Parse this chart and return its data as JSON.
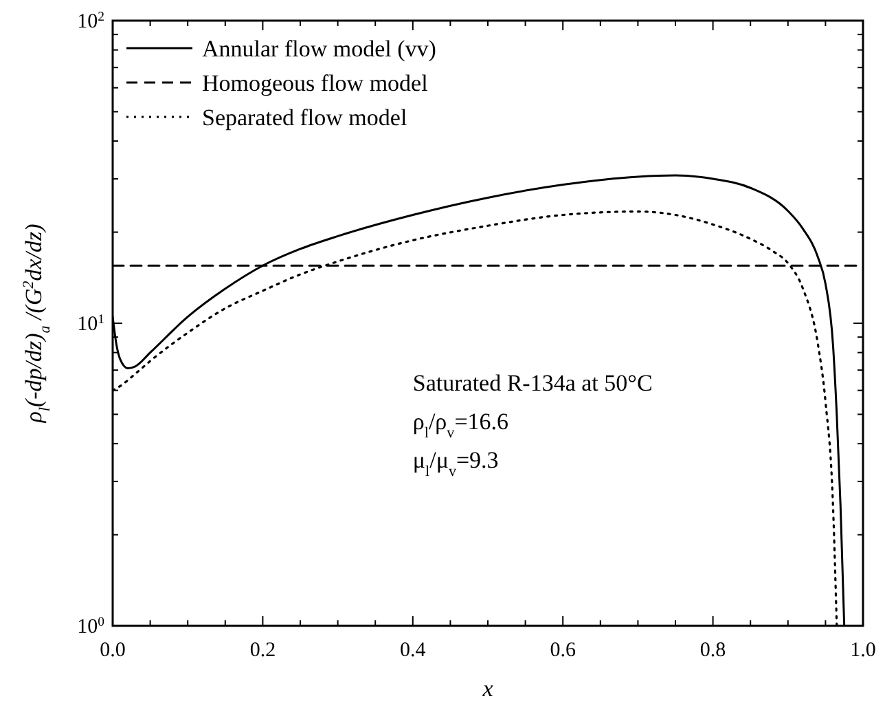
{
  "chart_data": {
    "type": "line",
    "xlabel": "x",
    "ylabel": "ρ$_{l}$(-dp/dz)$_{a}$ /(G$^{2}$dx/dz)",
    "log": "y",
    "xlim": [
      0,
      1
    ],
    "ylim": [
      1,
      100
    ],
    "xticks": [
      {
        "value": 0,
        "label": "0.0"
      },
      {
        "value": 0.05,
        "label": null
      },
      {
        "value": 0.1,
        "label": null
      },
      {
        "value": 0.15,
        "label": null
      },
      {
        "value": 0.2,
        "label": "0.2"
      },
      {
        "value": 0.25,
        "label": null
      },
      {
        "value": 0.3,
        "label": null
      },
      {
        "value": 0.35,
        "label": null
      },
      {
        "value": 0.4,
        "label": "0.4"
      },
      {
        "value": 0.45,
        "label": null
      },
      {
        "value": 0.5,
        "label": null
      },
      {
        "value": 0.55,
        "label": null
      },
      {
        "value": 0.6,
        "label": "0.6"
      },
      {
        "value": 0.65,
        "label": null
      },
      {
        "value": 0.7,
        "label": null
      },
      {
        "value": 0.75,
        "label": null
      },
      {
        "value": 0.8,
        "label": "0.8"
      },
      {
        "value": 0.85,
        "label": null
      },
      {
        "value": 0.9,
        "label": null
      },
      {
        "value": 0.95,
        "label": null
      },
      {
        "value": 1,
        "label": "1.0"
      }
    ],
    "yticks": [
      {
        "value": 1,
        "label": "10$^{0}$"
      },
      {
        "value": 2,
        "label": null
      },
      {
        "value": 3,
        "label": null
      },
      {
        "value": 4,
        "label": null
      },
      {
        "value": 5,
        "label": null
      },
      {
        "value": 6,
        "label": null
      },
      {
        "value": 7,
        "label": null
      },
      {
        "value": 8,
        "label": null
      },
      {
        "value": 9,
        "label": null
      },
      {
        "value": 10,
        "label": "10$^{1}$"
      },
      {
        "value": 20,
        "label": null
      },
      {
        "value": 30,
        "label": null
      },
      {
        "value": 40,
        "label": null
      },
      {
        "value": 50,
        "label": null
      },
      {
        "value": 60,
        "label": null
      },
      {
        "value": 70,
        "label": null
      },
      {
        "value": 80,
        "label": null
      },
      {
        "value": 90,
        "label": null
      },
      {
        "value": 100,
        "label": "10$^{2}$"
      }
    ],
    "grid": false,
    "legend": "top left",
    "series": [
      {
        "name": "Annular flow model (vv)",
        "color": "#000000",
        "line_style": "solid",
        "x": [
          0,
          0.005,
          0.01,
          0.02,
          0.03,
          0.05,
          0.1,
          0.15,
          0.2,
          0.25,
          0.3,
          0.4,
          0.5,
          0.6,
          0.7,
          0.75,
          0.8,
          0.85,
          0.9,
          0.92,
          0.94,
          0.95,
          0.96,
          0.965,
          0.97,
          0.975
        ],
        "values": [
          10.5,
          8.5,
          7.6,
          7.1,
          7.2,
          8,
          10.5,
          13,
          15.5,
          17.6,
          19.4,
          22.8,
          26,
          28.7,
          30.5,
          30.8,
          30,
          28,
          23.5,
          20.5,
          16.5,
          13.5,
          8.5,
          5,
          2.5,
          1
        ]
      },
      {
        "name": "Homogeous flow model",
        "color": "#000000",
        "line_style": "dashed",
        "x": [
          0,
          1
        ],
        "values": [
          15.5,
          15.5
        ]
      },
      {
        "name": "Separated flow model",
        "color": "#000000",
        "line_style": "dotted",
        "x": [
          0,
          0.01,
          0.03,
          0.05,
          0.1,
          0.15,
          0.2,
          0.25,
          0.3,
          0.4,
          0.5,
          0.6,
          0.7,
          0.75,
          0.8,
          0.85,
          0.88,
          0.9,
          0.92,
          0.94,
          0.95,
          0.96,
          0.965
        ],
        "values": [
          6,
          6.2,
          6.8,
          7.5,
          9.3,
          11.2,
          12.8,
          14.5,
          16,
          18.8,
          21,
          22.8,
          23.4,
          22.8,
          21.2,
          19,
          17.3,
          15.8,
          13,
          8.5,
          5.5,
          2.5,
          1
        ]
      }
    ],
    "annotations": [
      "Saturated R-134a at 50°C",
      "ρ$_{l}$/ρ$_{v}$=16.6",
      "μ$_{l}$/μ$_{v}$=9.3"
    ]
  }
}
